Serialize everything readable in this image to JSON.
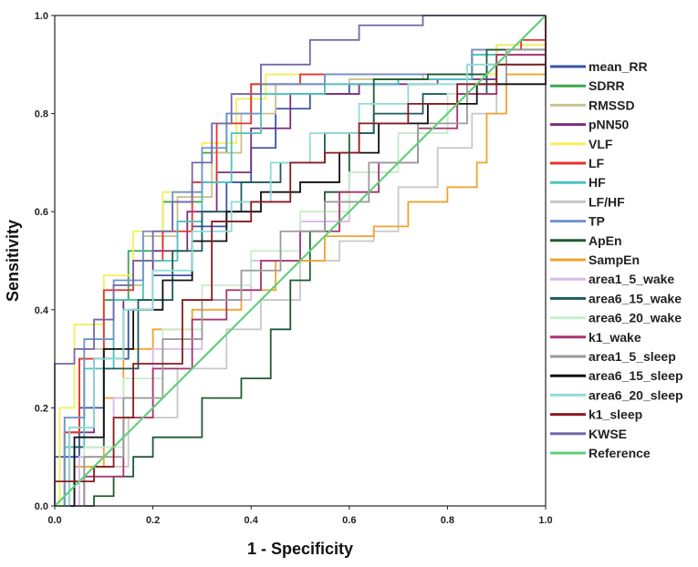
{
  "chart_data": {
    "type": "line",
    "title": "",
    "xlabel": "1 - Specificity",
    "ylabel": "Sensitivity",
    "xlim": [
      0,
      1
    ],
    "ylim": [
      0,
      1
    ],
    "x_ticks": [
      "0.0",
      "0.2",
      "0.4",
      "0.6",
      "0.8",
      "1.0"
    ],
    "y_ticks": [
      "0.0",
      "0.2",
      "0.4",
      "0.6",
      "0.8",
      "1.0"
    ],
    "grid": false,
    "legend_position": "right",
    "series": [
      {
        "name": "mean_RR",
        "color": "#3b54a4",
        "points": [
          [
            0,
            0
          ],
          [
            0,
            0.1
          ],
          [
            0.05,
            0.2
          ],
          [
            0.1,
            0.3
          ],
          [
            0.15,
            0.4
          ],
          [
            0.2,
            0.47
          ],
          [
            0.28,
            0.57
          ],
          [
            0.35,
            0.66
          ],
          [
            0.4,
            0.73
          ],
          [
            0.45,
            0.81
          ],
          [
            0.52,
            0.84
          ],
          [
            0.6,
            0.86
          ],
          [
            0.7,
            0.87
          ],
          [
            0.85,
            0.92
          ],
          [
            1,
            1
          ]
        ]
      },
      {
        "name": "SDRR",
        "color": "#3aa84a",
        "points": [
          [
            0,
            0
          ],
          [
            0.02,
            0.15
          ],
          [
            0.05,
            0.3
          ],
          [
            0.1,
            0.42
          ],
          [
            0.15,
            0.52
          ],
          [
            0.22,
            0.62
          ],
          [
            0.3,
            0.72
          ],
          [
            0.35,
            0.8
          ],
          [
            0.4,
            0.86
          ],
          [
            0.55,
            0.88
          ],
          [
            0.7,
            0.88
          ],
          [
            0.85,
            0.93
          ],
          [
            1,
            1
          ]
        ]
      },
      {
        "name": "RMSSD",
        "color": "#c9c08f",
        "points": [
          [
            0,
            0
          ],
          [
            0.02,
            0.18
          ],
          [
            0.06,
            0.32
          ],
          [
            0.12,
            0.45
          ],
          [
            0.18,
            0.55
          ],
          [
            0.25,
            0.63
          ],
          [
            0.32,
            0.72
          ],
          [
            0.38,
            0.8
          ],
          [
            0.45,
            0.86
          ],
          [
            0.6,
            0.87
          ],
          [
            0.75,
            0.88
          ],
          [
            0.9,
            0.94
          ],
          [
            1,
            1
          ]
        ]
      },
      {
        "name": "pNN50",
        "color": "#7b2f7f",
        "points": [
          [
            0,
            0
          ],
          [
            0.03,
            0.15
          ],
          [
            0.08,
            0.3
          ],
          [
            0.14,
            0.42
          ],
          [
            0.2,
            0.52
          ],
          [
            0.27,
            0.6
          ],
          [
            0.33,
            0.68
          ],
          [
            0.4,
            0.77
          ],
          [
            0.48,
            0.84
          ],
          [
            0.62,
            0.86
          ],
          [
            0.78,
            0.87
          ],
          [
            0.9,
            0.93
          ],
          [
            1,
            1
          ]
        ]
      },
      {
        "name": "VLF",
        "color": "#f4ef5a",
        "points": [
          [
            0,
            0
          ],
          [
            0.01,
            0.2
          ],
          [
            0.04,
            0.37
          ],
          [
            0.1,
            0.47
          ],
          [
            0.16,
            0.56
          ],
          [
            0.22,
            0.64
          ],
          [
            0.3,
            0.74
          ],
          [
            0.37,
            0.83
          ],
          [
            0.43,
            0.88
          ],
          [
            0.6,
            0.88
          ],
          [
            0.75,
            0.88
          ],
          [
            0.9,
            0.94
          ],
          [
            1,
            1
          ]
        ]
      },
      {
        "name": "LF",
        "color": "#e8322d",
        "points": [
          [
            0,
            0
          ],
          [
            0.02,
            0.15
          ],
          [
            0.05,
            0.3
          ],
          [
            0.1,
            0.44
          ],
          [
            0.16,
            0.5
          ],
          [
            0.22,
            0.56
          ],
          [
            0.28,
            0.66
          ],
          [
            0.33,
            0.78
          ],
          [
            0.4,
            0.86
          ],
          [
            0.5,
            0.88
          ],
          [
            0.65,
            0.88
          ],
          [
            0.85,
            0.93
          ],
          [
            0.95,
            0.95
          ],
          [
            1,
            1
          ]
        ]
      },
      {
        "name": "HF",
        "color": "#4cc2c0",
        "points": [
          [
            0,
            0
          ],
          [
            0.02,
            0.12
          ],
          [
            0.06,
            0.28
          ],
          [
            0.12,
            0.42
          ],
          [
            0.18,
            0.5
          ],
          [
            0.25,
            0.58
          ],
          [
            0.3,
            0.66
          ],
          [
            0.36,
            0.76
          ],
          [
            0.42,
            0.84
          ],
          [
            0.55,
            0.86
          ],
          [
            0.7,
            0.87
          ],
          [
            0.85,
            0.92
          ],
          [
            1,
            1
          ]
        ]
      },
      {
        "name": "LF/HF",
        "color": "#c8c8c8",
        "points": [
          [
            0,
            0
          ],
          [
            0.06,
            0.08
          ],
          [
            0.15,
            0.18
          ],
          [
            0.25,
            0.28
          ],
          [
            0.35,
            0.36
          ],
          [
            0.42,
            0.42
          ],
          [
            0.5,
            0.5
          ],
          [
            0.58,
            0.54
          ],
          [
            0.65,
            0.56
          ],
          [
            0.7,
            0.65
          ],
          [
            0.78,
            0.73
          ],
          [
            0.85,
            0.8
          ],
          [
            0.9,
            0.86
          ],
          [
            1,
            1
          ]
        ]
      },
      {
        "name": "TP",
        "color": "#6f94cc",
        "points": [
          [
            0,
            0
          ],
          [
            0.02,
            0.18
          ],
          [
            0.06,
            0.34
          ],
          [
            0.12,
            0.46
          ],
          [
            0.18,
            0.56
          ],
          [
            0.24,
            0.64
          ],
          [
            0.3,
            0.73
          ],
          [
            0.35,
            0.8
          ],
          [
            0.42,
            0.86
          ],
          [
            0.55,
            0.88
          ],
          [
            0.7,
            0.88
          ],
          [
            0.85,
            0.93
          ],
          [
            1,
            1
          ]
        ]
      },
      {
        "name": "ApEn",
        "color": "#1f5b33",
        "points": [
          [
            0,
            0
          ],
          [
            0.08,
            0.02
          ],
          [
            0.12,
            0.06
          ],
          [
            0.16,
            0.1
          ],
          [
            0.2,
            0.14
          ],
          [
            0.3,
            0.22
          ],
          [
            0.38,
            0.26
          ],
          [
            0.44,
            0.36
          ],
          [
            0.48,
            0.46
          ],
          [
            0.52,
            0.56
          ],
          [
            0.55,
            0.64
          ],
          [
            0.6,
            0.76
          ],
          [
            0.65,
            0.87
          ],
          [
            0.76,
            0.88
          ],
          [
            0.88,
            0.93
          ],
          [
            1,
            1
          ]
        ]
      },
      {
        "name": "SampEn",
        "color": "#f4a12e",
        "points": [
          [
            0,
            0
          ],
          [
            0.04,
            0.08
          ],
          [
            0.1,
            0.22
          ],
          [
            0.14,
            0.32
          ],
          [
            0.2,
            0.36
          ],
          [
            0.28,
            0.4
          ],
          [
            0.38,
            0.44
          ],
          [
            0.45,
            0.5
          ],
          [
            0.55,
            0.55
          ],
          [
            0.65,
            0.57
          ],
          [
            0.72,
            0.62
          ],
          [
            0.8,
            0.65
          ],
          [
            0.86,
            0.7
          ],
          [
            0.88,
            0.8
          ],
          [
            0.92,
            0.88
          ],
          [
            1,
            1
          ]
        ]
      },
      {
        "name": "area1_5_wake",
        "color": "#d9b8e8",
        "points": [
          [
            0,
            0
          ],
          [
            0.05,
            0.1
          ],
          [
            0.12,
            0.22
          ],
          [
            0.2,
            0.32
          ],
          [
            0.3,
            0.42
          ],
          [
            0.4,
            0.5
          ],
          [
            0.5,
            0.58
          ],
          [
            0.6,
            0.68
          ],
          [
            0.7,
            0.76
          ],
          [
            0.8,
            0.84
          ],
          [
            0.9,
            0.92
          ],
          [
            1,
            1
          ]
        ]
      },
      {
        "name": "area6_15_wake",
        "color": "#1f5a5c",
        "points": [
          [
            0,
            0
          ],
          [
            0.04,
            0.12
          ],
          [
            0.1,
            0.28
          ],
          [
            0.17,
            0.42
          ],
          [
            0.24,
            0.52
          ],
          [
            0.3,
            0.6
          ],
          [
            0.38,
            0.66
          ],
          [
            0.46,
            0.7
          ],
          [
            0.55,
            0.76
          ],
          [
            0.65,
            0.8
          ],
          [
            0.75,
            0.84
          ],
          [
            0.88,
            0.9
          ],
          [
            1,
            1
          ]
        ]
      },
      {
        "name": "area6_20_wake",
        "color": "#c8eecb",
        "points": [
          [
            0,
            0
          ],
          [
            0.06,
            0.12
          ],
          [
            0.14,
            0.26
          ],
          [
            0.22,
            0.36
          ],
          [
            0.3,
            0.45
          ],
          [
            0.4,
            0.52
          ],
          [
            0.5,
            0.6
          ],
          [
            0.6,
            0.68
          ],
          [
            0.7,
            0.76
          ],
          [
            0.8,
            0.84
          ],
          [
            0.9,
            0.92
          ],
          [
            1,
            1
          ]
        ]
      },
      {
        "name": "k1_wake",
        "color": "#a8336e",
        "points": [
          [
            0,
            0
          ],
          [
            0.06,
            0.06
          ],
          [
            0.14,
            0.18
          ],
          [
            0.2,
            0.28
          ],
          [
            0.28,
            0.38
          ],
          [
            0.35,
            0.44
          ],
          [
            0.42,
            0.5
          ],
          [
            0.5,
            0.56
          ],
          [
            0.58,
            0.64
          ],
          [
            0.66,
            0.7
          ],
          [
            0.74,
            0.77
          ],
          [
            0.82,
            0.84
          ],
          [
            0.9,
            0.92
          ],
          [
            1,
            1
          ]
        ]
      },
      {
        "name": "area1_5_sleep",
        "color": "#9a9a9a",
        "points": [
          [
            0,
            0
          ],
          [
            0.06,
            0.1
          ],
          [
            0.14,
            0.22
          ],
          [
            0.22,
            0.34
          ],
          [
            0.3,
            0.42
          ],
          [
            0.38,
            0.48
          ],
          [
            0.46,
            0.56
          ],
          [
            0.55,
            0.62
          ],
          [
            0.64,
            0.7
          ],
          [
            0.74,
            0.78
          ],
          [
            0.84,
            0.86
          ],
          [
            0.92,
            0.93
          ],
          [
            1,
            1
          ]
        ]
      },
      {
        "name": "area6_15_sleep",
        "color": "#111111",
        "points": [
          [
            0,
            0
          ],
          [
            0.04,
            0.14
          ],
          [
            0.1,
            0.32
          ],
          [
            0.16,
            0.4
          ],
          [
            0.22,
            0.46
          ],
          [
            0.28,
            0.54
          ],
          [
            0.35,
            0.6
          ],
          [
            0.42,
            0.64
          ],
          [
            0.5,
            0.66
          ],
          [
            0.58,
            0.72
          ],
          [
            0.66,
            0.78
          ],
          [
            0.76,
            0.82
          ],
          [
            0.86,
            0.86
          ],
          [
            1,
            1
          ]
        ]
      },
      {
        "name": "area6_20_sleep",
        "color": "#8fdbd8",
        "points": [
          [
            0,
            0
          ],
          [
            0.03,
            0.16
          ],
          [
            0.08,
            0.3
          ],
          [
            0.14,
            0.4
          ],
          [
            0.2,
            0.48
          ],
          [
            0.28,
            0.56
          ],
          [
            0.36,
            0.62
          ],
          [
            0.44,
            0.7
          ],
          [
            0.52,
            0.76
          ],
          [
            0.62,
            0.82
          ],
          [
            0.72,
            0.86
          ],
          [
            0.84,
            0.9
          ],
          [
            1,
            1
          ]
        ]
      },
      {
        "name": "k1_sleep",
        "color": "#8b1a1f",
        "points": [
          [
            0,
            0
          ],
          [
            0,
            0.05
          ],
          [
            0.04,
            0.05
          ],
          [
            0.08,
            0.08
          ],
          [
            0.12,
            0.18
          ],
          [
            0.16,
            0.29
          ],
          [
            0.2,
            0.29
          ],
          [
            0.26,
            0.42
          ],
          [
            0.32,
            0.58
          ],
          [
            0.4,
            0.62
          ],
          [
            0.48,
            0.7
          ],
          [
            0.55,
            0.72
          ],
          [
            0.62,
            0.78
          ],
          [
            0.72,
            0.82
          ],
          [
            0.82,
            0.86
          ],
          [
            0.9,
            0.9
          ],
          [
            1,
            1
          ]
        ]
      },
      {
        "name": "KWSE",
        "color": "#7368a8",
        "points": [
          [
            0,
            0
          ],
          [
            0,
            0.29
          ],
          [
            0.04,
            0.32
          ],
          [
            0.08,
            0.38
          ],
          [
            0.12,
            0.45
          ],
          [
            0.16,
            0.5
          ],
          [
            0.2,
            0.56
          ],
          [
            0.24,
            0.62
          ],
          [
            0.28,
            0.7
          ],
          [
            0.32,
            0.78
          ],
          [
            0.36,
            0.84
          ],
          [
            0.42,
            0.9
          ],
          [
            0.52,
            0.95
          ],
          [
            0.62,
            0.98
          ],
          [
            0.75,
            1
          ],
          [
            1,
            1
          ]
        ]
      },
      {
        "name": "Reference",
        "color": "#5fd07a",
        "points": [
          [
            0,
            0
          ],
          [
            1,
            1
          ]
        ]
      }
    ]
  }
}
